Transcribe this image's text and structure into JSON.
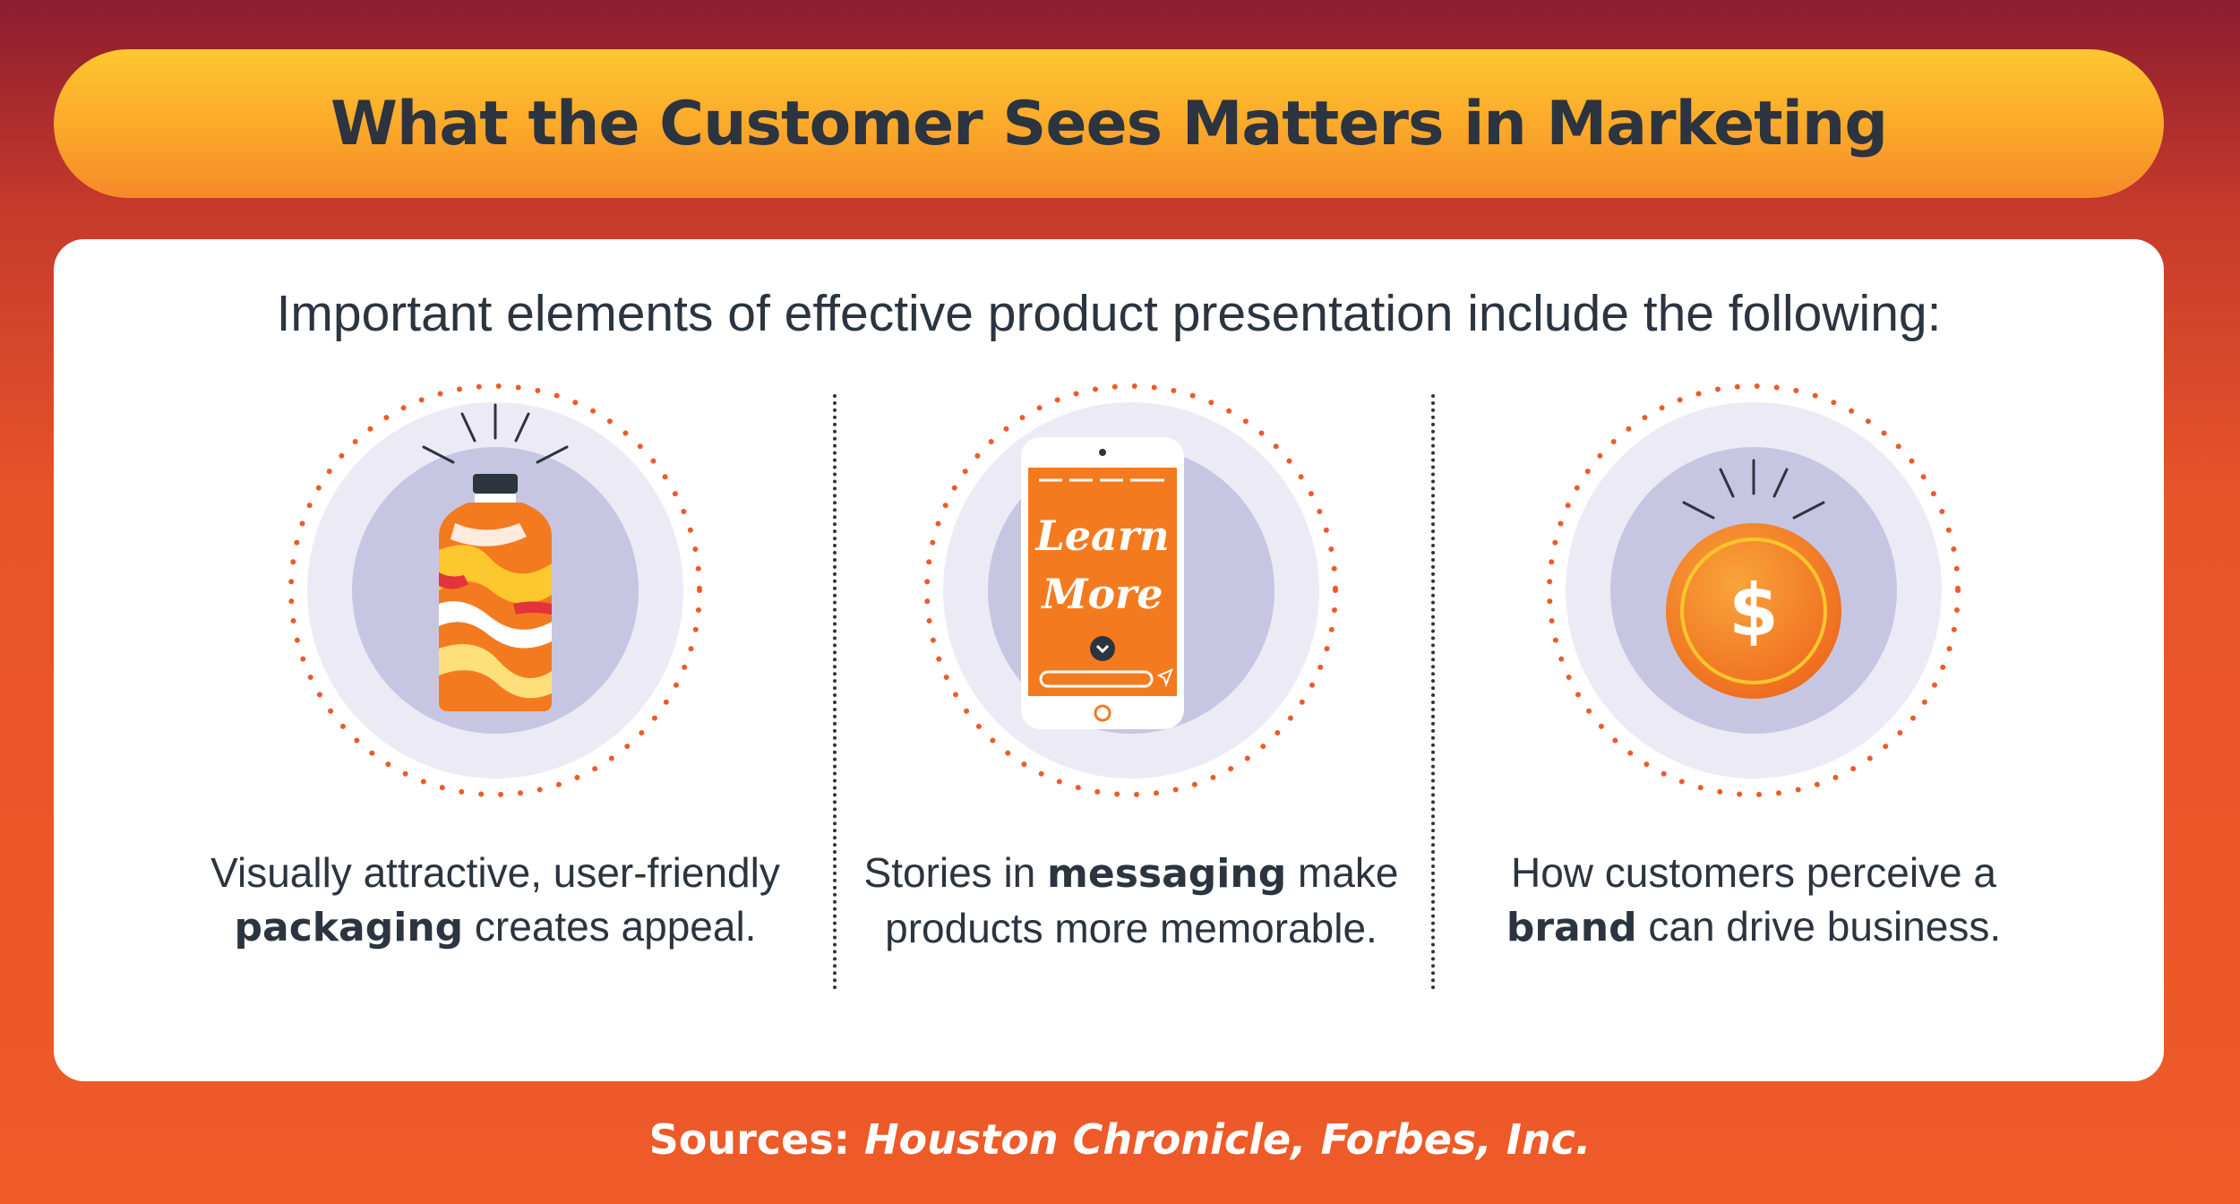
{
  "header": {
    "title": "What the Customer Sees Matters in Marketing"
  },
  "panel": {
    "intro": "Important elements of effective product presentation include the following:",
    "items": [
      {
        "icon": "bottle-icon",
        "pre": "Visually attractive, user-friendly",
        "keyword": "packaging",
        "post": "creates appeal."
      },
      {
        "icon": "smartphone-icon",
        "screen_text_line1": "Learn",
        "screen_text_line2": "More",
        "pre": "Stories in",
        "keyword": "messaging",
        "post": "make products more memorable."
      },
      {
        "icon": "dollar-coin-icon",
        "pre": "How customers perceive a",
        "keyword": "brand",
        "post": "can drive business."
      }
    ]
  },
  "footer": {
    "sources_label": "Sources:",
    "sources_names": "Houston Chronicle, Forbes, Inc."
  },
  "colors": {
    "title_text": "#2c3440",
    "accent_orange": "#f58220",
    "circle_outer": "#ecebf5",
    "circle_inner": "#c7c6e2",
    "dots": "#ee5a28"
  }
}
